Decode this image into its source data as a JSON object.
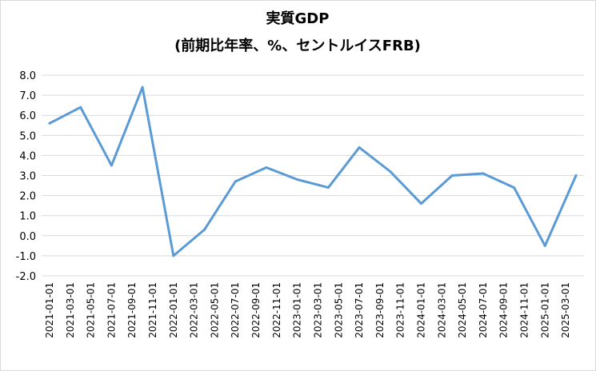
{
  "chart_data": {
    "type": "line",
    "title": "実質GDP",
    "subtitle": "(前期比年率、%、セントルイスFRB)",
    "xlabel": "",
    "ylabel": "",
    "ylim": [
      -2.0,
      8.0
    ],
    "y_ticks": [
      "8.0",
      "7.0",
      "6.0",
      "5.0",
      "4.0",
      "3.0",
      "2.0",
      "1.0",
      "0.0",
      "-1.0",
      "-2.0"
    ],
    "y_tick_values": [
      8,
      7,
      6,
      5,
      4,
      3,
      2,
      1,
      0,
      -1,
      -2
    ],
    "grid": true,
    "legend": "none",
    "categories": [
      "2021-01-01",
      "2021-04-01",
      "2021-07-01",
      "2021-10-01",
      "2022-01-01",
      "2022-04-01",
      "2022-07-01",
      "2022-10-01",
      "2023-01-01",
      "2023-04-01",
      "2023-07-01",
      "2023-10-01",
      "2024-01-01",
      "2024-04-01",
      "2024-07-01",
      "2024-10-01",
      "2025-01-01",
      "2025-04-01"
    ],
    "x_tick_labels": [
      "2021-01-01",
      "2021-03-01",
      "2021-05-01",
      "2021-07-01",
      "2021-09-01",
      "2021-11-01",
      "2022-01-01",
      "2022-03-01",
      "2022-05-01",
      "2022-07-01",
      "2022-09-01",
      "2022-11-01",
      "2023-01-01",
      "2023-03-01",
      "2023-05-01",
      "2023-07-01",
      "2023-09-01",
      "2023-11-01",
      "2024-01-01",
      "2024-03-01",
      "2024-05-01",
      "2024-07-01",
      "2024-09-01",
      "2024-11-01",
      "2025-01-01",
      "2025-03-01"
    ],
    "series": [
      {
        "values": [
          5.6,
          6.4,
          3.5,
          7.4,
          -1.0,
          0.3,
          2.7,
          3.4,
          2.8,
          2.4,
          4.4,
          3.2,
          1.6,
          3.0,
          3.1,
          2.4,
          -0.5,
          3.0
        ],
        "color": "#5b9bd5"
      }
    ]
  }
}
